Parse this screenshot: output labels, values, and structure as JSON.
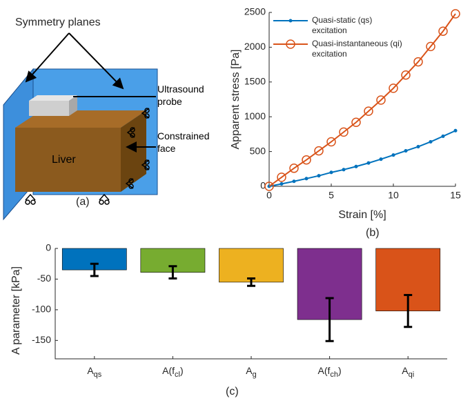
{
  "diagram": {
    "labels": {
      "symmetry": "Symmetry planes",
      "probe": "Ultrasound probe",
      "face": "Constrained face",
      "liver": "Liver",
      "panel": "(a)"
    }
  },
  "chart_data": [
    {
      "type": "line",
      "panel": "(b)",
      "x_label": "Strain [%]",
      "y_label": "Apparent stress [Pa]",
      "x": [
        0,
        1,
        2,
        3,
        4,
        5,
        6,
        7,
        8,
        9,
        10,
        11,
        12,
        13,
        14,
        15
      ],
      "series": [
        {
          "name": "Quasi-static (qs) excitation",
          "color": "#0072bd",
          "marker": "dot",
          "values": [
            0,
            35,
            72,
            111,
            152,
            200,
            240,
            285,
            335,
            390,
            450,
            510,
            570,
            640,
            720,
            800
          ]
        },
        {
          "name": "Quasi-instantaneous (qi) excitation",
          "color": "#d95319",
          "marker": "circle",
          "values": [
            0,
            130,
            260,
            380,
            510,
            640,
            780,
            920,
            1080,
            1240,
            1410,
            1600,
            1790,
            2010,
            2230,
            2480
          ]
        }
      ],
      "xlim": [
        0,
        15
      ],
      "xticks": [
        0,
        5,
        10,
        15
      ],
      "ylim": [
        0,
        2500
      ],
      "yticks": [
        0,
        500,
        1000,
        1500,
        2000,
        2500
      ],
      "legend": "upper-left"
    },
    {
      "type": "bar",
      "panel": "(c)",
      "y_label": "A parameter [kPa]",
      "categories": [
        [
          "A",
          "qs"
        ],
        [
          "A(f",
          "cl",
          ")"
        ],
        [
          "A",
          "g"
        ],
        [
          "A(f",
          "ch",
          ")"
        ],
        [
          "A",
          "qi"
        ]
      ],
      "values": [
        -35,
        -39,
        -55,
        -116,
        -102
      ],
      "errors": [
        10,
        10,
        6,
        35,
        26
      ],
      "colors": [
        "#0072bd",
        "#77ac30",
        "#edb120",
        "#7e2f8e",
        "#d95319"
      ],
      "ylim": [
        -180,
        0
      ],
      "yticks": [
        0,
        -50,
        -100,
        -150
      ]
    }
  ]
}
